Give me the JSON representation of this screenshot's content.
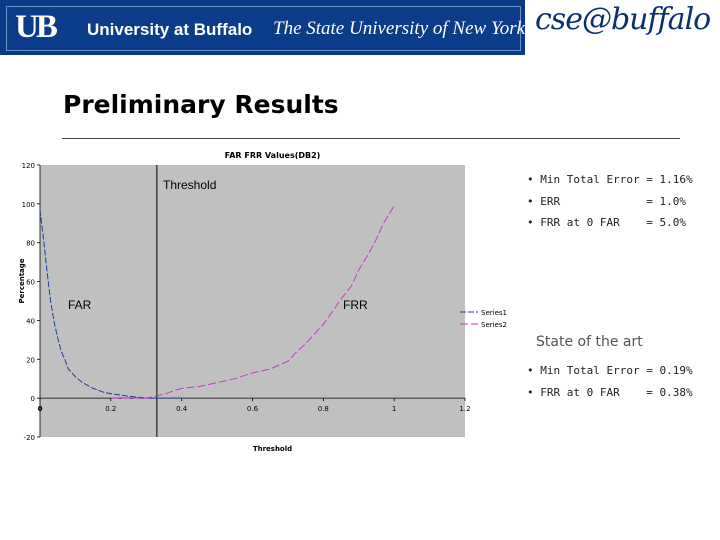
{
  "header": {
    "ub_logo": "UB",
    "university": "University at Buffalo",
    "subtitle": "The State University of New York",
    "cse_logo": "cse@buffalo"
  },
  "slide_title": "Preliminary Results",
  "results": {
    "items": [
      "• Min Total Error = 1.16%",
      "• ERR             = 1.0%",
      "• FRR at 0 FAR    = 5.0%"
    ]
  },
  "state_of_art": {
    "heading": "State of the art",
    "items": [
      "• Min Total Error = 0.19%",
      "• FRR at 0 FAR    = 0.38%"
    ]
  },
  "chart_data": {
    "type": "line",
    "title": "FAR FRR Values(DB2)",
    "xlabel": "Threshold",
    "ylabel": "Percentage",
    "xlim": [
      0,
      1.2
    ],
    "ylim": [
      -20,
      120
    ],
    "x_ticks": [
      "0",
      "0.2",
      "0.4",
      "0.6",
      "0.8",
      "1",
      "1.2"
    ],
    "y_ticks": [
      "-20",
      "0",
      "20",
      "40",
      "60",
      "80",
      "100",
      "120"
    ],
    "grid": false,
    "legend_position": "right",
    "legend": [
      "Series1",
      "Series2"
    ],
    "annotations": {
      "threshold": "Threshold",
      "far": "FAR",
      "frr": "FRR"
    },
    "threshold_x": 0.33,
    "colors": {
      "series1": "#1f3c9e",
      "series2": "#cc33cc",
      "plot_bg": "#c0c0c0"
    },
    "series": [
      {
        "name": "Series1",
        "x": [
          0,
          0.01,
          0.02,
          0.03,
          0.04,
          0.05,
          0.06,
          0.07,
          0.08,
          0.1,
          0.12,
          0.15,
          0.18,
          0.21,
          0.25,
          0.3,
          0.35,
          0.4
        ],
        "y": [
          97,
          82,
          65,
          50,
          39,
          31,
          24,
          20,
          15,
          11,
          8,
          5,
          3,
          2,
          1,
          0,
          0,
          0
        ]
      },
      {
        "name": "Series2",
        "x": [
          0.2,
          0.3,
          0.35,
          0.38,
          0.4,
          0.45,
          0.5,
          0.55,
          0.6,
          0.65,
          0.7,
          0.72,
          0.75,
          0.77,
          0.8,
          0.82,
          0.85,
          0.88,
          0.9,
          0.93,
          0.95,
          0.97,
          1.0
        ],
        "y": [
          0,
          0,
          2,
          4,
          5,
          6,
          8,
          10,
          13,
          15,
          19,
          23,
          28,
          32,
          38,
          43,
          51,
          58,
          66,
          75,
          82,
          90,
          99
        ]
      }
    ]
  }
}
